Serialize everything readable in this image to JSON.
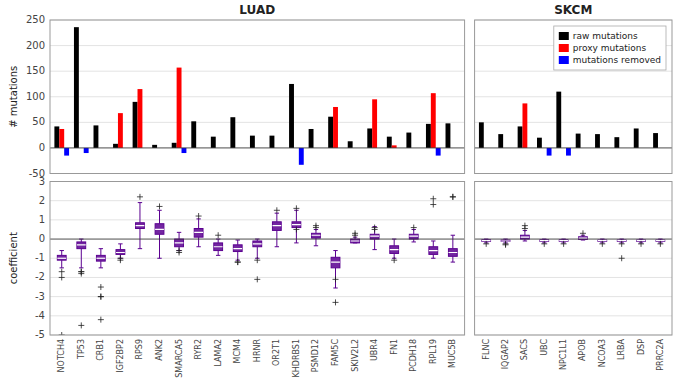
{
  "chart_data": [
    {
      "type": "bar",
      "title": "LUAD",
      "y_label": "# mutations",
      "series": [
        {
          "color": "#000000",
          "values": [
            42,
            236,
            44,
            8,
            90,
            6,
            10,
            52,
            22,
            60,
            24,
            24,
            125,
            37,
            61,
            13,
            38,
            22,
            30,
            47,
            48
          ]
        },
        {
          "color": "#ff0000",
          "values": [
            37,
            0,
            0,
            68,
            115,
            0,
            157,
            0,
            0,
            0,
            0,
            0,
            0,
            0,
            80,
            0,
            95,
            5,
            0,
            107,
            0
          ]
        },
        {
          "color": "#0000ff",
          "values": [
            -15,
            -10,
            0,
            0,
            0,
            0,
            -10,
            0,
            0,
            0,
            0,
            0,
            -33,
            0,
            0,
            0,
            0,
            0,
            0,
            -15,
            0
          ]
        }
      ],
      "ylim": [
        -50,
        250
      ],
      "yticks": [
        -50,
        0,
        50,
        100,
        150,
        200,
        250
      ],
      "grid": true,
      "tick_labels": "y"
    },
    {
      "type": "bar",
      "title": "SKCM",
      "series": [
        {
          "name": "raw mutations",
          "color": "#000000",
          "values": [
            50,
            27,
            42,
            20,
            110,
            28,
            27,
            21,
            38,
            29
          ]
        },
        {
          "name": "proxy mutations",
          "color": "#ff0000",
          "values": [
            0,
            0,
            87,
            0,
            0,
            0,
            0,
            0,
            0,
            0
          ]
        },
        {
          "name": "mutations removed",
          "color": "#0000ff",
          "values": [
            0,
            0,
            0,
            -15,
            -15,
            0,
            0,
            0,
            0,
            0
          ]
        }
      ],
      "ylim": [
        -50,
        250
      ],
      "yticks": [
        -50,
        0,
        50,
        100,
        150,
        200,
        250
      ],
      "grid": true,
      "legend": "upper right",
      "tick_labels": false
    },
    {
      "type": "box",
      "y_label": "coefficient",
      "categories": [
        "NOTCH4",
        "TP53",
        "CRB1",
        "IGF2BP2",
        "RPS9",
        "ANK2",
        "SMARCA5",
        "RYR2",
        "LAMA2",
        "MCM4",
        "HRNR",
        "OR2T1",
        "KHDRBS1",
        "PSMD12",
        "FAM5C",
        "SKIV2L2",
        "UBR4",
        "FN1",
        "PCDH18",
        "RPL19",
        "MUC5B"
      ],
      "median": [
        -1.0,
        -0.3,
        -1.0,
        -0.7,
        0.7,
        0.5,
        -0.2,
        0.35,
        -0.4,
        -0.5,
        -0.25,
        0.7,
        0.75,
        0.2,
        -1.2,
        -0.1,
        0.15,
        -0.55,
        0.15,
        -0.6,
        -0.7
      ],
      "q1": [
        -1.1,
        -0.5,
        -1.15,
        -0.8,
        0.55,
        0.25,
        -0.4,
        0.1,
        -0.6,
        -0.65,
        -0.4,
        0.45,
        0.6,
        0.05,
        -1.5,
        -0.2,
        0.0,
        -0.75,
        0.0,
        -0.8,
        -0.9
      ],
      "q3": [
        -0.85,
        -0.15,
        -0.85,
        -0.55,
        0.85,
        0.8,
        0.0,
        0.55,
        -0.2,
        -0.3,
        -0.1,
        0.9,
        0.9,
        0.3,
        -0.95,
        0.0,
        0.25,
        -0.35,
        0.25,
        -0.4,
        -0.5
      ],
      "whislo": [
        -1.5,
        -1.5,
        -1.5,
        -1.0,
        -0.5,
        -1.0,
        -0.6,
        -0.4,
        -0.85,
        -1.1,
        -1.0,
        -0.4,
        -0.2,
        -0.35,
        -2.55,
        -0.2,
        -0.55,
        -1.0,
        -0.15,
        -1.0,
        -1.2
      ],
      "whishi": [
        -0.6,
        0.0,
        -0.5,
        -0.25,
        1.9,
        1.5,
        0.35,
        1.05,
        0.0,
        -0.05,
        0.0,
        1.35,
        1.5,
        0.5,
        -0.6,
        0.1,
        0.65,
        0.0,
        0.5,
        -0.1,
        0.2
      ],
      "fliers": [
        [
          -1.7,
          -2.0,
          -5.0
        ],
        [
          -1.7,
          -1.7,
          -1.8,
          -4.5
        ],
        [
          -2.5,
          -3.0,
          -3.0,
          -4.2
        ],
        [
          -1.1,
          -1.0
        ],
        [
          2.2
        ],
        [
          1.7
        ],
        [
          -0.7,
          -0.6
        ],
        [
          1.2
        ],
        [
          0.2
        ],
        [
          -1.2,
          -1.2
        ],
        [
          -1.1,
          -2.1
        ],
        [
          1.5
        ],
        [
          1.6,
          0.5
        ],
        [
          0.6,
          0.7
        ],
        [
          -2.1,
          -3.3
        ],
        [
          0.2,
          0.3
        ],
        [
          0.6,
          0.5
        ],
        [
          -1.1
        ],
        [
          0.6
        ],
        [
          2.1,
          1.8
        ],
        [
          2.2,
          2.2
        ]
      ],
      "color": "#5b0090",
      "ylim": [
        -5,
        3
      ],
      "yticks": [
        -5,
        -4,
        -3,
        -2,
        -1,
        0,
        1,
        2,
        3
      ],
      "grid": true
    },
    {
      "type": "box",
      "categories": [
        "FLNC",
        "IQGAP2",
        "SACS",
        "UBC",
        "NPC1L1",
        "APOB",
        "NCOA3",
        "LRBA",
        "DSP",
        "PRRC2A"
      ],
      "median": [
        -0.08,
        -0.1,
        0.1,
        -0.08,
        -0.08,
        0.05,
        -0.08,
        -0.08,
        -0.08,
        -0.08
      ],
      "q1": [
        -0.12,
        -0.12,
        0.0,
        -0.12,
        -0.12,
        -0.02,
        -0.12,
        -0.12,
        -0.12,
        -0.12
      ],
      "q3": [
        -0.04,
        -0.05,
        0.2,
        -0.04,
        -0.04,
        0.12,
        -0.05,
        -0.05,
        -0.05,
        -0.05
      ],
      "whislo": [
        -0.2,
        -0.2,
        -0.1,
        -0.2,
        -0.2,
        -0.05,
        -0.2,
        -0.2,
        -0.2,
        -0.2
      ],
      "whishi": [
        0.0,
        0.0,
        0.45,
        0.0,
        0.0,
        0.2,
        0.0,
        0.0,
        0.0,
        0.0
      ],
      "fliers": [
        [
          -0.25
        ],
        [
          -0.25,
          -0.3
        ],
        [
          0.55,
          0.7
        ],
        [
          -0.25
        ],
        [
          -0.25
        ],
        [
          0.3
        ],
        [
          -0.25
        ],
        [
          -0.25,
          -1.0
        ],
        [
          -0.25
        ],
        [
          -0.25
        ]
      ],
      "color": "#5b0090",
      "ylim": [
        -5,
        3
      ],
      "yticks": [
        -5,
        -4,
        -3,
        -2,
        -1,
        0,
        1,
        2,
        3
      ],
      "grid": true,
      "tick_labels": "x"
    }
  ]
}
